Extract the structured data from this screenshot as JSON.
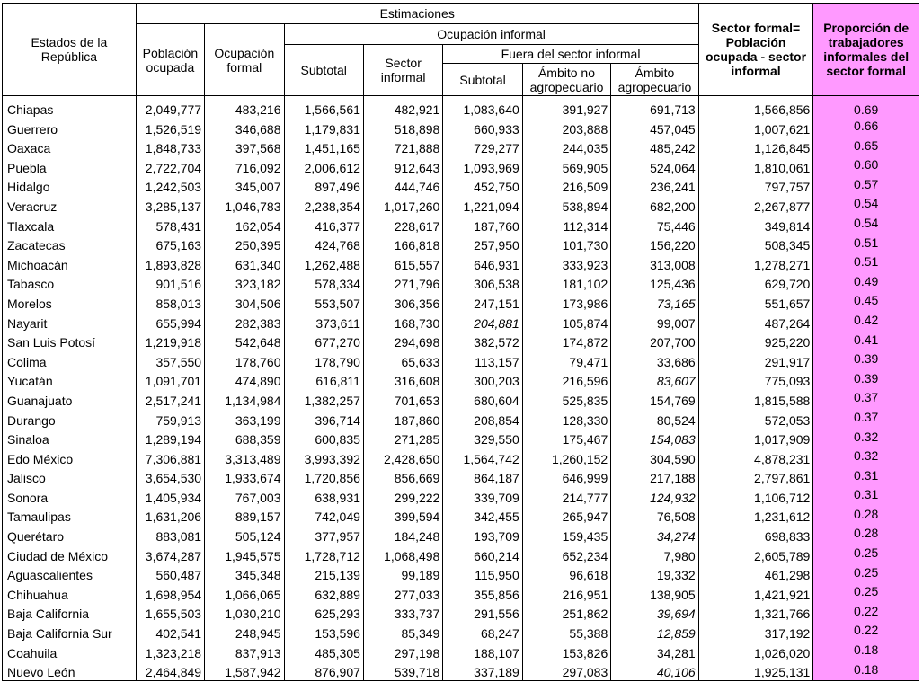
{
  "headers": {
    "estados": "Estados de la República",
    "estimaciones": "Estimaciones",
    "poblacion_ocupada": "Población ocupada",
    "ocupacion_formal": "Ocupación formal",
    "ocupacion_informal": "Ocupación informal",
    "subtotal": "Subtotal",
    "sector_informal": "Sector informal",
    "fuera_sector_informal": "Fuera del sector informal",
    "subtotal_fuera": "Subtotal",
    "ambito_no_agro": "Ámbito no agropecuario",
    "ambito_agro": "Ámbito agropecuario",
    "sector_formal": "Sector formal= Población ocupada - sector informal",
    "proporcion": "Proporción de trabajadores informales del sector formal"
  },
  "highlight_color": "#ff99ff",
  "rows": [
    {
      "state": "Chiapas",
      "pob": "2,049,777",
      "formal": "483,216",
      "subtotal": "1,566,561",
      "sector_inf": "482,921",
      "fuera_sub": "1,083,640",
      "no_agro": "391,927",
      "agro": "691,713",
      "sector_formal": "1,566,856",
      "ratio": "0.69",
      "italic": []
    },
    {
      "state": "Guerrero",
      "pob": "1,526,519",
      "formal": "346,688",
      "subtotal": "1,179,831",
      "sector_inf": "518,898",
      "fuera_sub": "660,933",
      "no_agro": "203,888",
      "agro": "457,045",
      "sector_formal": "1,007,621",
      "ratio": "0.66",
      "italic": []
    },
    {
      "state": "Oaxaca",
      "pob": "1,848,733",
      "formal": "397,568",
      "subtotal": "1,451,165",
      "sector_inf": "721,888",
      "fuera_sub": "729,277",
      "no_agro": "244,035",
      "agro": "485,242",
      "sector_formal": "1,126,845",
      "ratio": "0.65",
      "italic": []
    },
    {
      "state": "Puebla",
      "pob": "2,722,704",
      "formal": "716,092",
      "subtotal": "2,006,612",
      "sector_inf": "912,643",
      "fuera_sub": "1,093,969",
      "no_agro": "569,905",
      "agro": "524,064",
      "sector_formal": "1,810,061",
      "ratio": "0.60",
      "italic": []
    },
    {
      "state": "Hidalgo",
      "pob": "1,242,503",
      "formal": "345,007",
      "subtotal": "897,496",
      "sector_inf": "444,746",
      "fuera_sub": "452,750",
      "no_agro": "216,509",
      "agro": "236,241",
      "sector_formal": "797,757",
      "ratio": "0.57",
      "italic": []
    },
    {
      "state": "Veracruz",
      "pob": "3,285,137",
      "formal": "1,046,783",
      "subtotal": "2,238,354",
      "sector_inf": "1,017,260",
      "fuera_sub": "1,221,094",
      "no_agro": "538,894",
      "agro": "682,200",
      "sector_formal": "2,267,877",
      "ratio": "0.54",
      "italic": []
    },
    {
      "state": "Tlaxcala",
      "pob": "578,431",
      "formal": "162,054",
      "subtotal": "416,377",
      "sector_inf": "228,617",
      "fuera_sub": "187,760",
      "no_agro": "112,314",
      "agro": "75,446",
      "sector_formal": "349,814",
      "ratio": "0.54",
      "italic": []
    },
    {
      "state": "Zacatecas",
      "pob": "675,163",
      "formal": "250,395",
      "subtotal": "424,768",
      "sector_inf": "166,818",
      "fuera_sub": "257,950",
      "no_agro": "101,730",
      "agro": "156,220",
      "sector_formal": "508,345",
      "ratio": "0.51",
      "italic": []
    },
    {
      "state": "Michoacán",
      "pob": "1,893,828",
      "formal": "631,340",
      "subtotal": "1,262,488",
      "sector_inf": "615,557",
      "fuera_sub": "646,931",
      "no_agro": "333,923",
      "agro": "313,008",
      "sector_formal": "1,278,271",
      "ratio": "0.51",
      "italic": []
    },
    {
      "state": "Tabasco",
      "pob": "901,516",
      "formal": "323,182",
      "subtotal": "578,334",
      "sector_inf": "271,796",
      "fuera_sub": "306,538",
      "no_agro": "181,102",
      "agro": "125,436",
      "sector_formal": "629,720",
      "ratio": "0.49",
      "italic": []
    },
    {
      "state": "Morelos",
      "pob": "858,013",
      "formal": "304,506",
      "subtotal": "553,507",
      "sector_inf": "306,356",
      "fuera_sub": "247,151",
      "no_agro": "173,986",
      "agro": "73,165",
      "sector_formal": "551,657",
      "ratio": "0.45",
      "italic": [
        "agro"
      ]
    },
    {
      "state": "Nayarit",
      "pob": "655,994",
      "formal": "282,383",
      "subtotal": "373,611",
      "sector_inf": "168,730",
      "fuera_sub": "204,881",
      "no_agro": "105,874",
      "agro": "99,007",
      "sector_formal": "487,264",
      "ratio": "0.42",
      "italic": [
        "fuera_sub"
      ]
    },
    {
      "state": "San Luis Potosí",
      "pob": "1,219,918",
      "formal": "542,648",
      "subtotal": "677,270",
      "sector_inf": "294,698",
      "fuera_sub": "382,572",
      "no_agro": "174,872",
      "agro": "207,700",
      "sector_formal": "925,220",
      "ratio": "0.41",
      "italic": []
    },
    {
      "state": "Colima",
      "pob": "357,550",
      "formal": "178,760",
      "subtotal": "178,790",
      "sector_inf": "65,633",
      "fuera_sub": "113,157",
      "no_agro": "79,471",
      "agro": "33,686",
      "sector_formal": "291,917",
      "ratio": "0.39",
      "italic": []
    },
    {
      "state": "Yucatán",
      "pob": "1,091,701",
      "formal": "474,890",
      "subtotal": "616,811",
      "sector_inf": "316,608",
      "fuera_sub": "300,203",
      "no_agro": "216,596",
      "agro": "83,607",
      "sector_formal": "775,093",
      "ratio": "0.39",
      "italic": [
        "agro"
      ]
    },
    {
      "state": "Guanajuato",
      "pob": "2,517,241",
      "formal": "1,134,984",
      "subtotal": "1,382,257",
      "sector_inf": "701,653",
      "fuera_sub": "680,604",
      "no_agro": "525,835",
      "agro": "154,769",
      "sector_formal": "1,815,588",
      "ratio": "0.37",
      "italic": []
    },
    {
      "state": "Durango",
      "pob": "759,913",
      "formal": "363,199",
      "subtotal": "396,714",
      "sector_inf": "187,860",
      "fuera_sub": "208,854",
      "no_agro": "128,330",
      "agro": "80,524",
      "sector_formal": "572,053",
      "ratio": "0.37",
      "italic": []
    },
    {
      "state": "Sinaloa",
      "pob": "1,289,194",
      "formal": "688,359",
      "subtotal": "600,835",
      "sector_inf": "271,285",
      "fuera_sub": "329,550",
      "no_agro": "175,467",
      "agro": "154,083",
      "sector_formal": "1,017,909",
      "ratio": "0.32",
      "italic": [
        "agro"
      ]
    },
    {
      "state": "Edo México",
      "pob": "7,306,881",
      "formal": "3,313,489",
      "subtotal": "3,993,392",
      "sector_inf": "2,428,650",
      "fuera_sub": "1,564,742",
      "no_agro": "1,260,152",
      "agro": "304,590",
      "sector_formal": "4,878,231",
      "ratio": "0.32",
      "italic": []
    },
    {
      "state": "Jalisco",
      "pob": "3,654,530",
      "formal": "1,933,674",
      "subtotal": "1,720,856",
      "sector_inf": "856,669",
      "fuera_sub": "864,187",
      "no_agro": "646,999",
      "agro": "217,188",
      "sector_formal": "2,797,861",
      "ratio": "0.31",
      "italic": []
    },
    {
      "state": "Sonora",
      "pob": "1,405,934",
      "formal": "767,003",
      "subtotal": "638,931",
      "sector_inf": "299,222",
      "fuera_sub": "339,709",
      "no_agro": "214,777",
      "agro": "124,932",
      "sector_formal": "1,106,712",
      "ratio": "0.31",
      "italic": [
        "agro"
      ]
    },
    {
      "state": "Tamaulipas",
      "pob": "1,631,206",
      "formal": "889,157",
      "subtotal": "742,049",
      "sector_inf": "399,594",
      "fuera_sub": "342,455",
      "no_agro": "265,947",
      "agro": "76,508",
      "sector_formal": "1,231,612",
      "ratio": "0.28",
      "italic": []
    },
    {
      "state": "Querétaro",
      "pob": "883,081",
      "formal": "505,124",
      "subtotal": "377,957",
      "sector_inf": "184,248",
      "fuera_sub": "193,709",
      "no_agro": "159,435",
      "agro": "34,274",
      "sector_formal": "698,833",
      "ratio": "0.28",
      "italic": [
        "agro"
      ]
    },
    {
      "state": "Ciudad de México",
      "pob": "3,674,287",
      "formal": "1,945,575",
      "subtotal": "1,728,712",
      "sector_inf": "1,068,498",
      "fuera_sub": "660,214",
      "no_agro": "652,234",
      "agro": "7,980",
      "sector_formal": "2,605,789",
      "ratio": "0.25",
      "italic": []
    },
    {
      "state": "Aguascalientes",
      "pob": "560,487",
      "formal": "345,348",
      "subtotal": "215,139",
      "sector_inf": "99,189",
      "fuera_sub": "115,950",
      "no_agro": "96,618",
      "agro": "19,332",
      "sector_formal": "461,298",
      "ratio": "0.25",
      "italic": []
    },
    {
      "state": "Chihuahua",
      "pob": "1,698,954",
      "formal": "1,066,065",
      "subtotal": "632,889",
      "sector_inf": "277,033",
      "fuera_sub": "355,856",
      "no_agro": "216,951",
      "agro": "138,905",
      "sector_formal": "1,421,921",
      "ratio": "0.25",
      "italic": []
    },
    {
      "state": "Baja California",
      "pob": "1,655,503",
      "formal": "1,030,210",
      "subtotal": "625,293",
      "sector_inf": "333,737",
      "fuera_sub": "291,556",
      "no_agro": "251,862",
      "agro": "39,694",
      "sector_formal": "1,321,766",
      "ratio": "0.22",
      "italic": [
        "agro"
      ]
    },
    {
      "state": "Baja California Sur",
      "pob": "402,541",
      "formal": "248,945",
      "subtotal": "153,596",
      "sector_inf": "85,349",
      "fuera_sub": "68,247",
      "no_agro": "55,388",
      "agro": "12,859",
      "sector_formal": "317,192",
      "ratio": "0.22",
      "italic": [
        "agro"
      ]
    },
    {
      "state": "Coahuila",
      "pob": "1,323,218",
      "formal": "837,913",
      "subtotal": "485,305",
      "sector_inf": "297,198",
      "fuera_sub": "188,107",
      "no_agro": "153,826",
      "agro": "34,281",
      "sector_formal": "1,026,020",
      "ratio": "0.18",
      "italic": []
    },
    {
      "state": "Nuevo León",
      "pob": "2,464,849",
      "formal": "1,587,942",
      "subtotal": "876,907",
      "sector_inf": "539,718",
      "fuera_sub": "337,189",
      "no_agro": "297,083",
      "agro": "40,106",
      "sector_formal": "1,925,131",
      "ratio": "0.18",
      "italic": [
        "agro"
      ]
    }
  ]
}
